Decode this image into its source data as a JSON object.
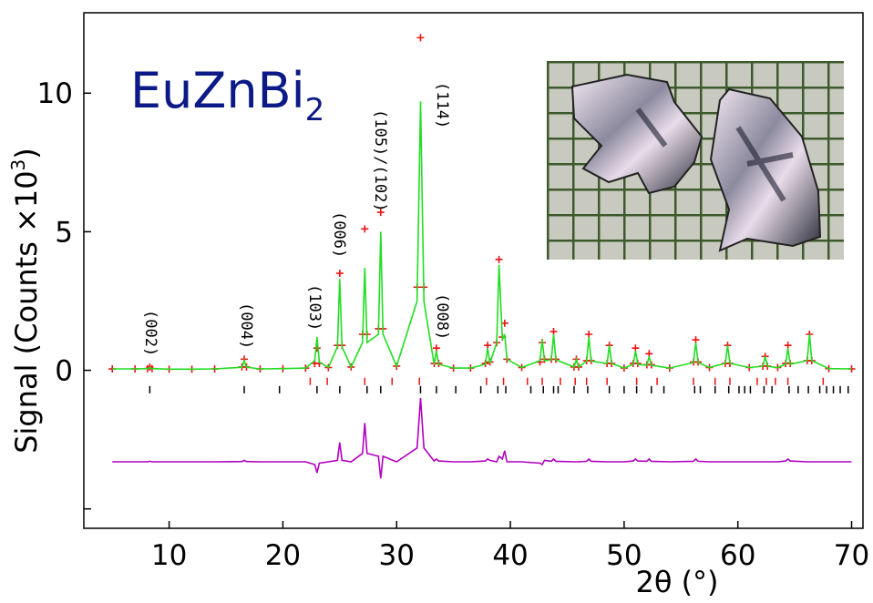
{
  "chart_data": {
    "type": "diffraction",
    "title": {
      "text": "EuZnBi",
      "subscript": "2"
    },
    "x_label": "2θ (°)",
    "y_label": {
      "text": "Signal (Counts ×10",
      "superscript": "3",
      "close": ")"
    },
    "xlim": [
      2.5,
      71
    ],
    "ylim": [
      -5.7,
      12.9
    ],
    "xticks": [
      10,
      20,
      30,
      40,
      50,
      60,
      70
    ],
    "yticks": [
      0,
      5,
      10
    ],
    "y_unlabeled_ticks": [
      -5
    ],
    "x": [
      5,
      7,
      8.1,
      8.3,
      8.5,
      10,
      12,
      14,
      16.4,
      16.6,
      16.8,
      18,
      20,
      22,
      22.8,
      23.0,
      23.2,
      24,
      24.8,
      25.0,
      25.2,
      26,
      27.0,
      27.2,
      27.4,
      28.4,
      28.6,
      28.8,
      30,
      31.8,
      32.1,
      32.4,
      33.3,
      33.5,
      33.7,
      35,
      36.5,
      37.8,
      38.0,
      38.2,
      38.8,
      39.0,
      39.3,
      39.5,
      39.7,
      41,
      42.6,
      42.8,
      43.0,
      43.6,
      43.8,
      44.0,
      45.6,
      45.8,
      46.0,
      46.7,
      46.9,
      47.1,
      48.5,
      48.7,
      48.9,
      50,
      50.8,
      51.0,
      51.2,
      52.0,
      52.2,
      52.4,
      54,
      56.1,
      56.3,
      56.5,
      57.5,
      58.9,
      59.1,
      59.3,
      61,
      62.2,
      62.4,
      62.6,
      63.5,
      64.2,
      64.4,
      64.6,
      66.1,
      66.3,
      66.5,
      68,
      70
    ],
    "series": [
      {
        "kind": "points",
        "color": "#ee1111",
        "values": [
          0.05,
          0.05,
          0.06,
          0.12,
          0.06,
          0.04,
          0.04,
          0.05,
          0.12,
          0.4,
          0.12,
          0.05,
          0.06,
          0.08,
          0.25,
          0.8,
          0.25,
          0.1,
          0.9,
          3.5,
          0.9,
          0.12,
          1.3,
          5.1,
          1.3,
          1.5,
          5.7,
          1.5,
          0.15,
          3.0,
          12.0,
          3.0,
          0.25,
          0.8,
          0.25,
          0.08,
          0.08,
          0.25,
          0.9,
          0.3,
          1.0,
          4.0,
          1.2,
          1.7,
          0.4,
          0.1,
          0.3,
          1.0,
          0.4,
          0.4,
          1.4,
          0.4,
          0.12,
          0.4,
          0.12,
          0.35,
          1.3,
          0.35,
          0.25,
          0.9,
          0.25,
          0.08,
          0.25,
          0.8,
          0.25,
          0.2,
          0.6,
          0.2,
          0.08,
          0.3,
          1.1,
          0.3,
          0.1,
          0.25,
          0.9,
          0.25,
          0.1,
          0.15,
          0.5,
          0.15,
          0.1,
          0.25,
          0.9,
          0.25,
          0.35,
          1.3,
          0.35,
          0.06,
          0.05
        ]
      },
      {
        "kind": "line",
        "color": "#22dd22",
        "values": [
          0.05,
          0.05,
          0.06,
          0.1,
          0.06,
          0.04,
          0.04,
          0.05,
          0.11,
          0.35,
          0.11,
          0.05,
          0.06,
          0.08,
          0.35,
          1.2,
          0.3,
          0.1,
          0.85,
          3.3,
          0.85,
          0.12,
          1.0,
          3.7,
          1.0,
          1.3,
          5.0,
          1.3,
          0.15,
          2.5,
          9.7,
          2.5,
          0.22,
          0.7,
          0.22,
          0.08,
          0.08,
          0.22,
          0.8,
          0.25,
          1.0,
          3.8,
          1.1,
          1.3,
          0.4,
          0.1,
          0.35,
          1.1,
          0.35,
          0.38,
          1.3,
          0.38,
          0.12,
          0.4,
          0.12,
          0.33,
          1.2,
          0.33,
          0.25,
          0.9,
          0.25,
          0.08,
          0.22,
          0.7,
          0.22,
          0.18,
          0.5,
          0.18,
          0.08,
          0.28,
          1.0,
          0.28,
          0.1,
          0.25,
          0.9,
          0.25,
          0.1,
          0.15,
          0.5,
          0.15,
          0.1,
          0.22,
          0.8,
          0.22,
          0.35,
          1.3,
          0.35,
          0.06,
          0.05
        ]
      },
      {
        "kind": "line",
        "color": "#b000c0",
        "values": [
          -3.3,
          -3.3,
          -3.3,
          -3.28,
          -3.3,
          -3.3,
          -3.3,
          -3.3,
          -3.29,
          -3.25,
          -3.29,
          -3.3,
          -3.3,
          -3.3,
          -3.4,
          -3.7,
          -3.35,
          -3.3,
          -3.25,
          -2.6,
          -3.25,
          -3.3,
          -3.0,
          -1.9,
          -3.0,
          -3.1,
          -3.9,
          -3.1,
          -3.3,
          -2.8,
          -1.0,
          -2.8,
          -3.27,
          -3.2,
          -3.27,
          -3.3,
          -3.3,
          -3.27,
          -3.2,
          -3.25,
          -3.3,
          -3.1,
          -3.2,
          -2.9,
          -3.3,
          -3.3,
          -3.35,
          -3.4,
          -3.25,
          -3.28,
          -3.2,
          -3.28,
          -3.3,
          -3.3,
          -3.3,
          -3.28,
          -3.2,
          -3.28,
          -3.3,
          -3.3,
          -3.3,
          -3.3,
          -3.27,
          -3.2,
          -3.27,
          -3.28,
          -3.2,
          -3.28,
          -3.3,
          -3.28,
          -3.2,
          -3.28,
          -3.3,
          -3.3,
          -3.3,
          -3.3,
          -3.3,
          -3.3,
          -3.3,
          -3.3,
          -3.3,
          -3.27,
          -3.2,
          -3.27,
          -3.3,
          -3.3,
          -3.3,
          -3.3,
          -3.3
        ]
      }
    ],
    "bragg_ticks": [
      {
        "color": "#ee1111",
        "y": -0.4,
        "positions": [
          22.4,
          23.9,
          27.2,
          29.6,
          32.0,
          37.9,
          39.4,
          41.5,
          42.8,
          44.4,
          45.7,
          46.7,
          48.5,
          51.1,
          52.9,
          56.1,
          58.0,
          59.3,
          61.7,
          62.5,
          63.3,
          64.4,
          67.5
        ]
      },
      {
        "color": "#000000",
        "y": -0.7,
        "positions": [
          8.3,
          16.6,
          19.7,
          23.0,
          25.0,
          27.4,
          28.6,
          32.1,
          33.5,
          35.2,
          37.4,
          38.9,
          39.6,
          41.8,
          42.9,
          43.8,
          44.2,
          45.6,
          46.8,
          48.7,
          50.0,
          51.1,
          52.4,
          53.5,
          56.2,
          56.7,
          58.0,
          59.2,
          60.1,
          60.6,
          61.1,
          62.3,
          63.0,
          64.5,
          65.3,
          66.2,
          67.2,
          67.8,
          68.4,
          69.0,
          69.7
        ]
      }
    ],
    "annotations": [
      "(002)",
      "(004)",
      "(103)",
      "(006)",
      "(105)/(102)",
      "(114)",
      "(008)"
    ]
  }
}
